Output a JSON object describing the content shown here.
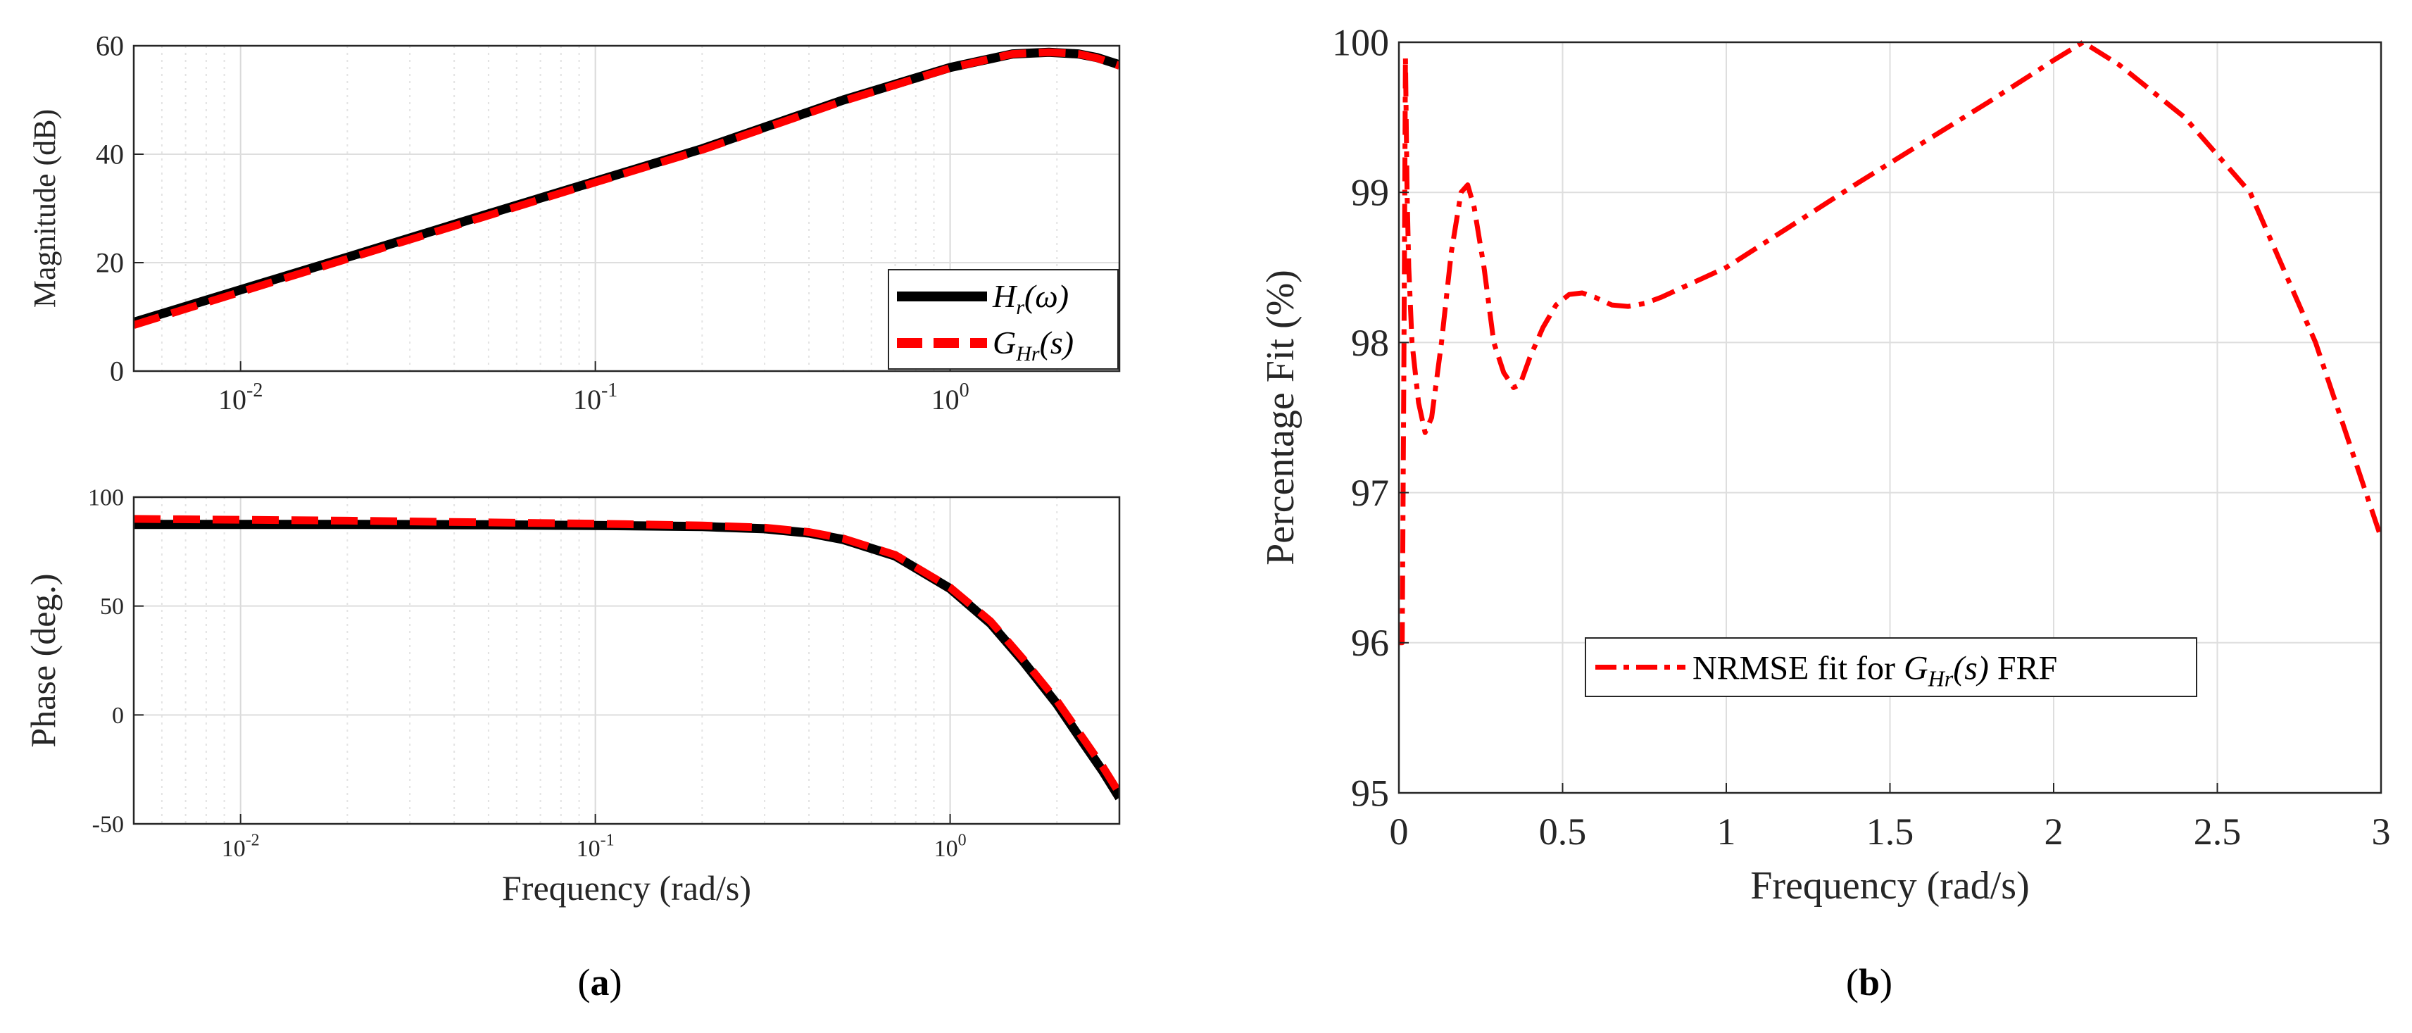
{
  "chart_data": [
    {
      "id": "magnitude",
      "type": "line",
      "xscale": "log",
      "xlim": [
        0.005,
        3
      ],
      "ylim": [
        0,
        60
      ],
      "ylabel": "Magnitude (dB)",
      "xlabel": "",
      "grid": true,
      "x_ticks": [
        0.01,
        0.1,
        1
      ],
      "x_tick_labels": [
        {
          "base": "10",
          "exp": "-2"
        },
        {
          "base": "10",
          "exp": "-1"
        },
        {
          "base": "10",
          "exp": "0"
        }
      ],
      "y_ticks": [
        0,
        20,
        40,
        60
      ],
      "y_tick_labels": [
        "0",
        "20",
        "40",
        "60"
      ],
      "legend": {
        "position": "bottom-right",
        "entries": [
          {
            "main": "H",
            "sub": "r",
            "arg": "(ω)"
          },
          {
            "main": "G",
            "sub": "Hr",
            "arg": "(s)"
          }
        ]
      },
      "series": [
        {
          "name": "Hr(ω)",
          "color": "#000000",
          "style": "solid",
          "x": [
            0.005,
            0.01,
            0.02,
            0.05,
            0.1,
            0.2,
            0.5,
            1,
            1.5,
            1.9,
            2.3,
            2.6,
            3
          ],
          "y": [
            9,
            15,
            21,
            29,
            35,
            41,
            50,
            56,
            58.5,
            58.8,
            58.5,
            57.8,
            56.5
          ]
        },
        {
          "name": "GHr(s)",
          "color": "#ff0000",
          "style": "dashed",
          "x": [
            0.005,
            0.01,
            0.02,
            0.05,
            0.1,
            0.2,
            0.5,
            1,
            1.5,
            1.9,
            2.3,
            2.6,
            3
          ],
          "y": [
            8.5,
            14.6,
            20.7,
            28.7,
            34.8,
            40.8,
            49.8,
            55.9,
            58.5,
            58.8,
            58.5,
            57.7,
            56.3
          ]
        }
      ]
    },
    {
      "id": "phase",
      "type": "line",
      "xscale": "log",
      "xlim": [
        0.005,
        3
      ],
      "ylim": [
        -50,
        100
      ],
      "ylabel": "Phase (deg.)",
      "xlabel": "Frequency (rad/s)",
      "grid": true,
      "x_ticks": [
        0.01,
        0.1,
        1
      ],
      "x_tick_labels": [
        {
          "base": "10",
          "exp": "-2"
        },
        {
          "base": "10",
          "exp": "-1"
        },
        {
          "base": "10",
          "exp": "0"
        }
      ],
      "y_ticks": [
        -50,
        0,
        50,
        100
      ],
      "y_tick_labels": [
        "-50",
        "0",
        "50",
        "100"
      ],
      "series": [
        {
          "name": "Hr(ω)",
          "color": "#000000",
          "style": "solid",
          "x": [
            0.005,
            0.02,
            0.05,
            0.1,
            0.2,
            0.3,
            0.4,
            0.5,
            0.7,
            1,
            1.3,
            1.6,
            2,
            2.4,
            2.7,
            3
          ],
          "y": [
            87.5,
            87.5,
            87.3,
            87,
            86.5,
            85.5,
            83.5,
            80.5,
            73,
            58,
            42,
            25,
            5,
            -14,
            -26,
            -38
          ]
        },
        {
          "name": "GHr(s)",
          "color": "#ff0000",
          "style": "dashed",
          "x": [
            0.005,
            0.02,
            0.05,
            0.1,
            0.2,
            0.3,
            0.4,
            0.5,
            0.7,
            1,
            1.3,
            1.6,
            2,
            2.4,
            2.7,
            3
          ],
          "y": [
            90,
            89.2,
            88.4,
            87.8,
            87,
            86,
            84,
            81,
            73.5,
            58.5,
            43,
            26,
            6.5,
            -12,
            -24,
            -36
          ]
        }
      ]
    },
    {
      "id": "fit",
      "type": "line",
      "xscale": "linear",
      "xlim": [
        0,
        3
      ],
      "ylim": [
        95,
        100
      ],
      "ylabel": "Percentage Fit  (%)",
      "xlabel": "Frequency (rad/s)",
      "grid": true,
      "x_ticks": [
        0,
        0.5,
        1,
        1.5,
        2,
        2.5,
        3
      ],
      "x_tick_labels": [
        "0",
        "0.5",
        "1",
        "1.5",
        "2",
        "2.5",
        "3"
      ],
      "y_ticks": [
        95,
        96,
        97,
        98,
        99,
        100
      ],
      "y_tick_labels": [
        "95",
        "96",
        "97",
        "98",
        "99",
        "100"
      ],
      "legend": {
        "position": "center-bottom",
        "entries": [
          {
            "pre": "NRMSE fit for ",
            "main": "G",
            "sub": "Hr",
            "arg": "(s)",
            "post": " FRF"
          }
        ]
      },
      "series": [
        {
          "name": "NRMSE fit for GHr(s) FRF",
          "color": "#ff0000",
          "style": "dashdot",
          "x": [
            0.0,
            0.01,
            0.015,
            0.02,
            0.025,
            0.03,
            0.04,
            0.06,
            0.08,
            0.1,
            0.13,
            0.16,
            0.19,
            0.21,
            0.23,
            0.26,
            0.29,
            0.32,
            0.35,
            0.37,
            0.4,
            0.44,
            0.48,
            0.52,
            0.56,
            0.6,
            0.65,
            0.7,
            0.75,
            0.8,
            0.9,
            1.0,
            1.2,
            1.4,
            1.6,
            1.8,
            2.0,
            2.09,
            2.2,
            2.4,
            2.6,
            2.8,
            3.0
          ],
          "y": [
            96.0,
            96.0,
            97.8,
            99.9,
            99.0,
            98.5,
            98.0,
            97.6,
            97.4,
            97.5,
            98.0,
            98.6,
            99.0,
            99.05,
            98.9,
            98.5,
            98.0,
            97.8,
            97.7,
            97.72,
            97.9,
            98.1,
            98.25,
            98.32,
            98.33,
            98.3,
            98.25,
            98.24,
            98.26,
            98.3,
            98.4,
            98.5,
            98.78,
            99.06,
            99.33,
            99.6,
            99.88,
            100.0,
            99.85,
            99.5,
            99.0,
            98.0,
            96.7
          ]
        }
      ]
    }
  ],
  "captions": {
    "left": {
      "open": "(",
      "letter": "a",
      "close": ")"
    },
    "right": {
      "open": "(",
      "letter": "b",
      "close": ")"
    }
  }
}
